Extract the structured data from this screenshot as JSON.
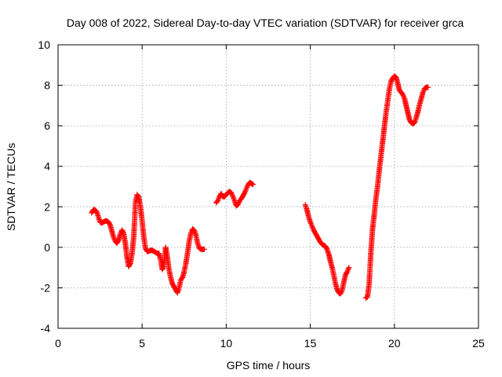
{
  "chart_data": {
    "type": "scatter",
    "title": "Day 008 of 2022, Sidereal Day-to-day VTEC variation (SDTVAR) for receiver grca",
    "xlabel": "GPS time / hours",
    "ylabel": "SDTVAR / TECUs",
    "xlim": [
      0,
      25
    ],
    "ylim": [
      -4,
      10
    ],
    "xticks": [
      0,
      5,
      10,
      15,
      20,
      25
    ],
    "yticks": [
      -4,
      -2,
      0,
      2,
      4,
      6,
      8,
      10
    ],
    "grid": true,
    "marker": "plus",
    "color": "#ff0000",
    "series": [
      {
        "segments": [
          [
            [
              2.0,
              1.7
            ],
            [
              2.1,
              1.85
            ],
            [
              2.2,
              1.85
            ],
            [
              2.3,
              1.75
            ],
            [
              2.4,
              1.5
            ],
            [
              2.5,
              1.25
            ],
            [
              2.6,
              1.2
            ],
            [
              2.7,
              1.25
            ],
            [
              2.8,
              1.3
            ],
            [
              2.9,
              1.3
            ],
            [
              3.0,
              1.25
            ],
            [
              3.1,
              1.1
            ],
            [
              3.2,
              0.8
            ],
            [
              3.3,
              0.5
            ],
            [
              3.4,
              0.3
            ],
            [
              3.5,
              0.2
            ],
            [
              3.6,
              0.35
            ],
            [
              3.7,
              0.65
            ],
            [
              3.8,
              0.85
            ],
            [
              3.9,
              0.7
            ],
            [
              4.0,
              0.2
            ],
            [
              4.1,
              -0.5
            ],
            [
              4.2,
              -0.95
            ],
            [
              4.3,
              -0.8
            ],
            [
              4.4,
              -0.3
            ],
            [
              4.5,
              0.5
            ],
            [
              4.55,
              1.3
            ],
            [
              4.6,
              2.2
            ],
            [
              4.7,
              2.6
            ],
            [
              4.8,
              2.5
            ],
            [
              4.9,
              2.0
            ],
            [
              5.0,
              1.3
            ],
            [
              5.1,
              0.5
            ],
            [
              5.2,
              -0.05
            ],
            [
              5.3,
              -0.2
            ],
            [
              5.4,
              -0.2
            ],
            [
              5.5,
              -0.15
            ],
            [
              5.6,
              -0.15
            ],
            [
              5.7,
              -0.2
            ],
            [
              5.8,
              -0.25
            ],
            [
              5.9,
              -0.3
            ],
            [
              6.0,
              -0.3
            ],
            [
              6.1,
              -0.6
            ],
            [
              6.2,
              -1.1
            ],
            [
              6.3,
              -0.9
            ],
            [
              6.4,
              0.0
            ],
            [
              6.5,
              -0.5
            ],
            [
              6.6,
              -1.1
            ],
            [
              6.7,
              -1.5
            ],
            [
              6.8,
              -1.8
            ],
            [
              6.9,
              -1.95
            ],
            [
              7.0,
              -2.1
            ],
            [
              7.1,
              -2.25
            ],
            [
              7.2,
              -2.0
            ],
            [
              7.3,
              -1.6
            ],
            [
              7.4,
              -1.5
            ],
            [
              7.5,
              -1.2
            ],
            [
              7.6,
              -0.8
            ],
            [
              7.7,
              -0.3
            ],
            [
              7.8,
              0.3
            ],
            [
              7.9,
              0.7
            ],
            [
              8.0,
              0.9
            ],
            [
              8.1,
              0.85
            ],
            [
              8.2,
              0.6
            ],
            [
              8.3,
              0.2
            ],
            [
              8.4,
              -0.05
            ],
            [
              8.5,
              -0.1
            ],
            [
              8.6,
              -0.1
            ],
            [
              8.7,
              -0.1
            ]
          ],
          [
            [
              9.4,
              2.2
            ],
            [
              9.5,
              2.3
            ],
            [
              9.6,
              2.5
            ],
            [
              9.7,
              2.65
            ],
            [
              9.8,
              2.5
            ],
            [
              9.9,
              2.5
            ],
            [
              10.0,
              2.6
            ],
            [
              10.1,
              2.7
            ],
            [
              10.2,
              2.75
            ],
            [
              10.3,
              2.7
            ],
            [
              10.4,
              2.5
            ],
            [
              10.5,
              2.3
            ],
            [
              10.6,
              2.05
            ],
            [
              10.7,
              2.1
            ],
            [
              10.8,
              2.3
            ],
            [
              10.9,
              2.4
            ],
            [
              11.0,
              2.55
            ],
            [
              11.1,
              2.7
            ],
            [
              11.2,
              2.9
            ],
            [
              11.3,
              3.1
            ],
            [
              11.4,
              3.2
            ],
            [
              11.5,
              3.15
            ],
            [
              11.6,
              3.1
            ]
          ],
          [
            [
              14.7,
              2.1
            ],
            [
              14.8,
              1.85
            ],
            [
              14.9,
              1.5
            ],
            [
              15.0,
              1.25
            ],
            [
              15.1,
              1.05
            ],
            [
              15.2,
              0.85
            ],
            [
              15.3,
              0.7
            ],
            [
              15.4,
              0.55
            ],
            [
              15.5,
              0.4
            ],
            [
              15.6,
              0.25
            ],
            [
              15.7,
              0.15
            ],
            [
              15.8,
              0.1
            ],
            [
              15.9,
              0.05
            ],
            [
              16.0,
              -0.1
            ],
            [
              16.1,
              -0.35
            ],
            [
              16.2,
              -0.7
            ],
            [
              16.3,
              -1.0
            ],
            [
              16.4,
              -1.4
            ],
            [
              16.5,
              -1.8
            ],
            [
              16.6,
              -2.1
            ],
            [
              16.7,
              -2.25
            ],
            [
              16.8,
              -2.3
            ],
            [
              16.9,
              -2.1
            ],
            [
              17.0,
              -1.7
            ],
            [
              17.1,
              -1.35
            ],
            [
              17.2,
              -1.2
            ],
            [
              17.3,
              -1.0
            ]
          ],
          [
            [
              18.3,
              -2.5
            ],
            [
              18.4,
              -2.45
            ],
            [
              18.5,
              -1.8
            ],
            [
              18.6,
              -0.3
            ],
            [
              18.7,
              0.9
            ],
            [
              18.8,
              1.6
            ],
            [
              18.9,
              2.4
            ],
            [
              19.0,
              3.0
            ],
            [
              19.1,
              3.8
            ],
            [
              19.2,
              4.5
            ],
            [
              19.3,
              5.2
            ],
            [
              19.4,
              5.9
            ],
            [
              19.5,
              6.6
            ],
            [
              19.6,
              7.2
            ],
            [
              19.7,
              7.8
            ],
            [
              19.8,
              8.2
            ],
            [
              19.9,
              8.35
            ],
            [
              20.0,
              8.45
            ],
            [
              20.1,
              8.4
            ],
            [
              20.2,
              8.1
            ],
            [
              20.3,
              7.75
            ],
            [
              20.4,
              7.65
            ],
            [
              20.5,
              7.55
            ],
            [
              20.6,
              7.35
            ],
            [
              20.7,
              7.0
            ],
            [
              20.8,
              6.65
            ],
            [
              20.9,
              6.3
            ],
            [
              21.0,
              6.15
            ],
            [
              21.1,
              6.1
            ],
            [
              21.2,
              6.15
            ],
            [
              21.3,
              6.4
            ],
            [
              21.4,
              6.7
            ],
            [
              21.5,
              7.05
            ],
            [
              21.6,
              7.35
            ],
            [
              21.7,
              7.65
            ],
            [
              21.8,
              7.85
            ],
            [
              21.9,
              7.9
            ],
            [
              22.0,
              7.9
            ]
          ]
        ]
      }
    ]
  }
}
